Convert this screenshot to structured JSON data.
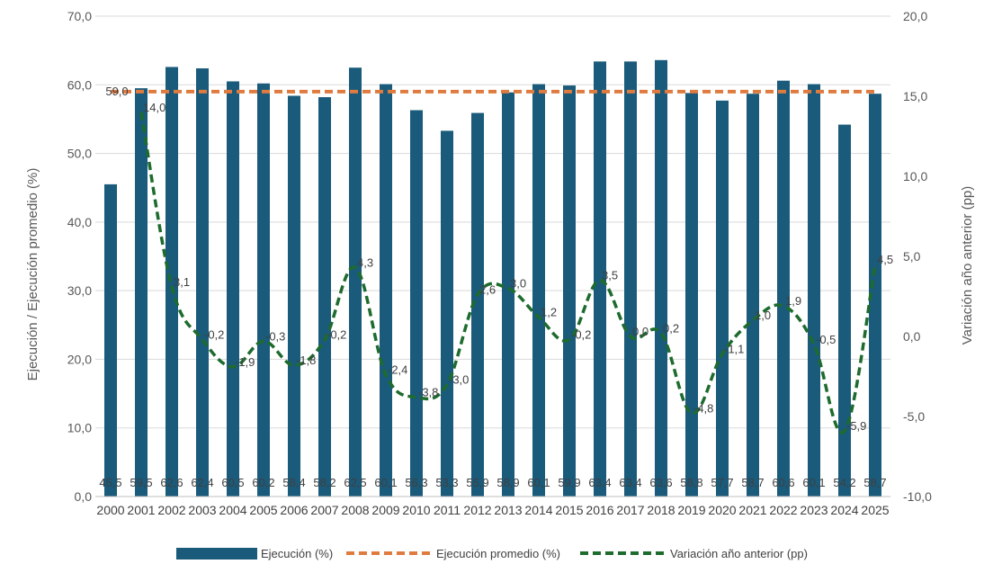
{
  "chart_data": {
    "type": "bar",
    "title": "",
    "categories": [
      "2000",
      "2001",
      "2002",
      "2003",
      "2004",
      "2005",
      "2006",
      "2007",
      "2008",
      "2009",
      "2010",
      "2011",
      "2012",
      "2013",
      "2014",
      "2015",
      "2016",
      "2017",
      "2018",
      "2019",
      "2020",
      "2021",
      "2022",
      "2023",
      "2024",
      "2025"
    ],
    "series": [
      {
        "name": "Ejecución (%)",
        "type": "bar",
        "axis": "left",
        "color": "#1a5a7a",
        "values": [
          45.5,
          59.5,
          62.6,
          62.4,
          60.5,
          60.2,
          58.4,
          58.2,
          62.5,
          60.1,
          56.3,
          53.3,
          55.9,
          58.9,
          60.1,
          59.9,
          63.4,
          63.4,
          63.6,
          58.8,
          57.7,
          58.7,
          60.6,
          60.1,
          54.2,
          58.7
        ],
        "labels": [
          "45,5",
          "59,5",
          "62,6",
          "62,4",
          "60,5",
          "60,2",
          "58,4",
          "58,2",
          "62,5",
          "60,1",
          "56,3",
          "53,3",
          "55,9",
          "58,9",
          "60,1",
          "59,9",
          "63,4",
          "63,4",
          "63,6",
          "58,8",
          "57,7",
          "58,7",
          "60,6",
          "60,1",
          "54,2",
          "58,7"
        ]
      },
      {
        "name": "Ejecución promedio (%)",
        "type": "line-dashed",
        "axis": "left",
        "color": "#e07b3f",
        "value": 59.0,
        "label": "59,0"
      },
      {
        "name": "Variación año anterior (pp)",
        "type": "line-dashed-smooth",
        "axis": "right",
        "color": "#1e6b2e",
        "values": [
          null,
          14.0,
          3.1,
          -0.2,
          -1.9,
          -0.3,
          -1.8,
          -0.2,
          4.3,
          -2.4,
          -3.8,
          -3.0,
          2.6,
          3.0,
          1.2,
          -0.2,
          3.5,
          0.0,
          0.2,
          -4.8,
          -1.1,
          1.0,
          1.9,
          -0.5,
          -5.9,
          4.5
        ],
        "labels": [
          "",
          "14,0",
          "3,1",
          "-0,2",
          "-1,9",
          "-0,3",
          "-1,8",
          "-0,2",
          "4,3",
          "-2,4",
          "-3,8",
          "-3,0",
          "2,6",
          "3,0",
          "1,2",
          "-0,2",
          "3,5",
          "0,0",
          "0,2",
          "-4,8",
          "-1,1",
          "1,0",
          "1,9",
          "-0,5",
          "-5,9",
          "4,5"
        ]
      }
    ],
    "y_left": {
      "label": "Ejecución / Ejecución promedio (%)",
      "ylim": [
        0,
        70
      ],
      "ticks": [
        0,
        10,
        20,
        30,
        40,
        50,
        60,
        70
      ],
      "tick_labels": [
        "0,0",
        "10,0",
        "20,0",
        "30,0",
        "40,0",
        "50,0",
        "60,0",
        "70,0"
      ]
    },
    "y_right": {
      "label": "Variación año anterior (pp)",
      "ylim": [
        -10,
        20
      ],
      "ticks": [
        -10,
        -5,
        0,
        5,
        10,
        15,
        20
      ],
      "tick_labels": [
        "-10,0",
        "-5,0",
        "0,0",
        "5,0",
        "10,0",
        "15,0",
        "20,0"
      ]
    },
    "grid": true,
    "legend_position": "bottom-center"
  }
}
